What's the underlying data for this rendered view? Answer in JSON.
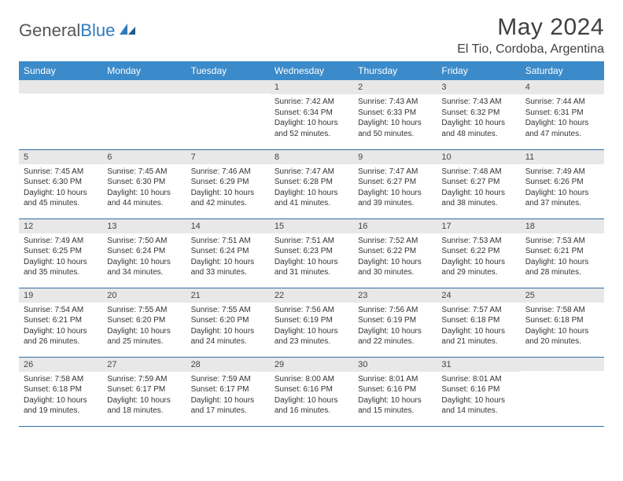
{
  "logo": {
    "text_gray": "General",
    "text_blue": "Blue"
  },
  "title": "May 2024",
  "location": "El Tio, Cordoba, Argentina",
  "colors": {
    "header_bg": "#3b8bca",
    "header_text": "#ffffff",
    "daynum_bg": "#e8e8e8",
    "border": "#2f6fa8",
    "logo_blue": "#2f7bbf"
  },
  "weekdays": [
    "Sunday",
    "Monday",
    "Tuesday",
    "Wednesday",
    "Thursday",
    "Friday",
    "Saturday"
  ],
  "weeks": [
    [
      {
        "n": "",
        "sr": "",
        "ss": "",
        "dl": ""
      },
      {
        "n": "",
        "sr": "",
        "ss": "",
        "dl": ""
      },
      {
        "n": "",
        "sr": "",
        "ss": "",
        "dl": ""
      },
      {
        "n": "1",
        "sr": "Sunrise: 7:42 AM",
        "ss": "Sunset: 6:34 PM",
        "dl": "Daylight: 10 hours and 52 minutes."
      },
      {
        "n": "2",
        "sr": "Sunrise: 7:43 AM",
        "ss": "Sunset: 6:33 PM",
        "dl": "Daylight: 10 hours and 50 minutes."
      },
      {
        "n": "3",
        "sr": "Sunrise: 7:43 AM",
        "ss": "Sunset: 6:32 PM",
        "dl": "Daylight: 10 hours and 48 minutes."
      },
      {
        "n": "4",
        "sr": "Sunrise: 7:44 AM",
        "ss": "Sunset: 6:31 PM",
        "dl": "Daylight: 10 hours and 47 minutes."
      }
    ],
    [
      {
        "n": "5",
        "sr": "Sunrise: 7:45 AM",
        "ss": "Sunset: 6:30 PM",
        "dl": "Daylight: 10 hours and 45 minutes."
      },
      {
        "n": "6",
        "sr": "Sunrise: 7:45 AM",
        "ss": "Sunset: 6:30 PM",
        "dl": "Daylight: 10 hours and 44 minutes."
      },
      {
        "n": "7",
        "sr": "Sunrise: 7:46 AM",
        "ss": "Sunset: 6:29 PM",
        "dl": "Daylight: 10 hours and 42 minutes."
      },
      {
        "n": "8",
        "sr": "Sunrise: 7:47 AM",
        "ss": "Sunset: 6:28 PM",
        "dl": "Daylight: 10 hours and 41 minutes."
      },
      {
        "n": "9",
        "sr": "Sunrise: 7:47 AM",
        "ss": "Sunset: 6:27 PM",
        "dl": "Daylight: 10 hours and 39 minutes."
      },
      {
        "n": "10",
        "sr": "Sunrise: 7:48 AM",
        "ss": "Sunset: 6:27 PM",
        "dl": "Daylight: 10 hours and 38 minutes."
      },
      {
        "n": "11",
        "sr": "Sunrise: 7:49 AM",
        "ss": "Sunset: 6:26 PM",
        "dl": "Daylight: 10 hours and 37 minutes."
      }
    ],
    [
      {
        "n": "12",
        "sr": "Sunrise: 7:49 AM",
        "ss": "Sunset: 6:25 PM",
        "dl": "Daylight: 10 hours and 35 minutes."
      },
      {
        "n": "13",
        "sr": "Sunrise: 7:50 AM",
        "ss": "Sunset: 6:24 PM",
        "dl": "Daylight: 10 hours and 34 minutes."
      },
      {
        "n": "14",
        "sr": "Sunrise: 7:51 AM",
        "ss": "Sunset: 6:24 PM",
        "dl": "Daylight: 10 hours and 33 minutes."
      },
      {
        "n": "15",
        "sr": "Sunrise: 7:51 AM",
        "ss": "Sunset: 6:23 PM",
        "dl": "Daylight: 10 hours and 31 minutes."
      },
      {
        "n": "16",
        "sr": "Sunrise: 7:52 AM",
        "ss": "Sunset: 6:22 PM",
        "dl": "Daylight: 10 hours and 30 minutes."
      },
      {
        "n": "17",
        "sr": "Sunrise: 7:53 AM",
        "ss": "Sunset: 6:22 PM",
        "dl": "Daylight: 10 hours and 29 minutes."
      },
      {
        "n": "18",
        "sr": "Sunrise: 7:53 AM",
        "ss": "Sunset: 6:21 PM",
        "dl": "Daylight: 10 hours and 28 minutes."
      }
    ],
    [
      {
        "n": "19",
        "sr": "Sunrise: 7:54 AM",
        "ss": "Sunset: 6:21 PM",
        "dl": "Daylight: 10 hours and 26 minutes."
      },
      {
        "n": "20",
        "sr": "Sunrise: 7:55 AM",
        "ss": "Sunset: 6:20 PM",
        "dl": "Daylight: 10 hours and 25 minutes."
      },
      {
        "n": "21",
        "sr": "Sunrise: 7:55 AM",
        "ss": "Sunset: 6:20 PM",
        "dl": "Daylight: 10 hours and 24 minutes."
      },
      {
        "n": "22",
        "sr": "Sunrise: 7:56 AM",
        "ss": "Sunset: 6:19 PM",
        "dl": "Daylight: 10 hours and 23 minutes."
      },
      {
        "n": "23",
        "sr": "Sunrise: 7:56 AM",
        "ss": "Sunset: 6:19 PM",
        "dl": "Daylight: 10 hours and 22 minutes."
      },
      {
        "n": "24",
        "sr": "Sunrise: 7:57 AM",
        "ss": "Sunset: 6:18 PM",
        "dl": "Daylight: 10 hours and 21 minutes."
      },
      {
        "n": "25",
        "sr": "Sunrise: 7:58 AM",
        "ss": "Sunset: 6:18 PM",
        "dl": "Daylight: 10 hours and 20 minutes."
      }
    ],
    [
      {
        "n": "26",
        "sr": "Sunrise: 7:58 AM",
        "ss": "Sunset: 6:18 PM",
        "dl": "Daylight: 10 hours and 19 minutes."
      },
      {
        "n": "27",
        "sr": "Sunrise: 7:59 AM",
        "ss": "Sunset: 6:17 PM",
        "dl": "Daylight: 10 hours and 18 minutes."
      },
      {
        "n": "28",
        "sr": "Sunrise: 7:59 AM",
        "ss": "Sunset: 6:17 PM",
        "dl": "Daylight: 10 hours and 17 minutes."
      },
      {
        "n": "29",
        "sr": "Sunrise: 8:00 AM",
        "ss": "Sunset: 6:16 PM",
        "dl": "Daylight: 10 hours and 16 minutes."
      },
      {
        "n": "30",
        "sr": "Sunrise: 8:01 AM",
        "ss": "Sunset: 6:16 PM",
        "dl": "Daylight: 10 hours and 15 minutes."
      },
      {
        "n": "31",
        "sr": "Sunrise: 8:01 AM",
        "ss": "Sunset: 6:16 PM",
        "dl": "Daylight: 10 hours and 14 minutes."
      },
      {
        "n": "",
        "sr": "",
        "ss": "",
        "dl": ""
      }
    ]
  ]
}
